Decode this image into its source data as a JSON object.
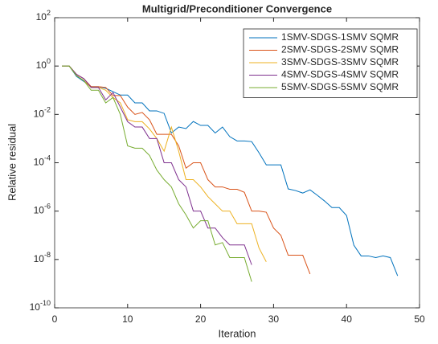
{
  "chart_data": {
    "type": "line",
    "title": "Multigrid/Preconditioner Convergence",
    "xlabel": "Iteration",
    "ylabel": "Relative residual",
    "xlim": [
      0,
      50
    ],
    "xticks": [
      0,
      10,
      20,
      30,
      40,
      50
    ],
    "ylim": [
      1e-10,
      100
    ],
    "yscale": "log",
    "yticks": [
      {
        "value": 1e-10,
        "label": "10^{-10}"
      },
      {
        "value": 1e-08,
        "label": "10^{-8}"
      },
      {
        "value": 1e-06,
        "label": "10^{-6}"
      },
      {
        "value": 0.0001,
        "label": "10^{-4}"
      },
      {
        "value": 0.01,
        "label": "10^{-2}"
      },
      {
        "value": 1,
        "label": "10^{0}"
      },
      {
        "value": 100,
        "label": "10^{2}"
      }
    ],
    "legend": "northeast",
    "series": [
      {
        "name": "1SMV-SDGS-1SMV SQMR",
        "color": "#0072bd",
        "x": [
          1,
          2,
          3,
          4,
          5,
          6,
          7,
          8,
          9,
          10,
          11,
          12,
          13,
          14,
          15,
          16,
          17,
          18,
          19,
          20,
          21,
          22,
          23,
          24,
          25,
          26,
          27,
          28,
          29,
          30,
          31,
          32,
          33,
          34,
          35,
          36,
          37,
          38,
          39,
          40,
          41,
          42,
          43,
          44,
          45,
          46,
          47
        ],
        "values": [
          1,
          1,
          0.37,
          0.23,
          0.14,
          0.14,
          0.12,
          0.087,
          0.063,
          0.063,
          0.03,
          0.03,
          0.014,
          0.014,
          0.011,
          0.0017,
          0.003,
          0.0026,
          0.0051,
          0.0035,
          0.0035,
          0.0017,
          0.003,
          0.0012,
          0.0008,
          0.0008,
          0.00075,
          0.00026,
          8.2e-05,
          8.2e-05,
          8.2e-05,
          8.3e-06,
          7.1e-06,
          5.6e-06,
          7.6e-06,
          4.5e-06,
          2.6e-06,
          1.4e-06,
          1.4e-06,
          6.6e-07,
          3.9e-08,
          1.4e-08,
          1.4e-08,
          1.2e-08,
          1.4e-08,
          1.2e-08,
          2.1e-09
        ]
      },
      {
        "name": "2SMV-SDGS-2SMV SQMR",
        "color": "#d95319",
        "x": [
          1,
          2,
          3,
          4,
          5,
          6,
          7,
          8,
          9,
          10,
          11,
          12,
          13,
          14,
          15,
          16,
          17,
          18,
          19,
          20,
          21,
          22,
          23,
          24,
          25,
          26,
          27,
          28,
          29,
          30,
          31,
          32,
          33,
          34,
          35
        ],
        "values": [
          1,
          1,
          0.45,
          0.3,
          0.14,
          0.14,
          0.13,
          0.06,
          0.06,
          0.02,
          0.01,
          0.012,
          0.006,
          0.0015,
          0.0015,
          0.0015,
          0.0005,
          6e-05,
          0.0001,
          0.0001,
          2e-05,
          1e-05,
          1e-05,
          8e-06,
          8e-06,
          6e-06,
          1e-06,
          1e-06,
          9e-07,
          2e-07,
          1e-07,
          1.5e-08,
          1.5e-08,
          1.5e-08,
          2.5e-09
        ]
      },
      {
        "name": "3SMV-SDGS-3SMV SQMR",
        "color": "#edb120",
        "x": [
          1,
          2,
          3,
          4,
          5,
          6,
          7,
          8,
          9,
          10,
          11,
          12,
          13,
          14,
          15,
          16,
          17,
          18,
          19,
          20,
          21,
          22,
          23,
          24,
          25,
          26,
          27,
          28,
          29
        ],
        "values": [
          1,
          1,
          0.4,
          0.25,
          0.13,
          0.13,
          0.1,
          0.05,
          0.03,
          0.006,
          0.005,
          0.005,
          0.0025,
          0.001,
          0.0003,
          0.003,
          0.0003,
          2e-05,
          2e-05,
          1e-05,
          4e-06,
          2e-06,
          1e-06,
          1e-06,
          3e-07,
          3e-07,
          3e-07,
          3e-08,
          8e-09
        ]
      },
      {
        "name": "4SMV-SDGS-4SMV SQMR",
        "color": "#7e2f8e",
        "x": [
          1,
          2,
          3,
          4,
          5,
          6,
          7,
          8,
          9,
          10,
          11,
          12,
          13,
          14,
          15,
          16,
          17,
          18,
          19,
          20,
          21,
          22,
          23,
          24,
          25,
          26,
          27
        ],
        "values": [
          1,
          1,
          0.45,
          0.3,
          0.13,
          0.13,
          0.04,
          0.08,
          0.02,
          0.005,
          0.003,
          0.003,
          0.001,
          0.001,
          0.0001,
          0.0001,
          2e-05,
          1e-05,
          1e-06,
          1e-06,
          2e-07,
          2e-07,
          8e-08,
          4e-08,
          4e-08,
          4e-08,
          6e-09
        ]
      },
      {
        "name": "5SMV-SDGS-5SMV SQMR",
        "color": "#77ac30",
        "x": [
          1,
          2,
          3,
          4,
          5,
          6,
          7,
          8,
          9,
          10,
          11,
          12,
          13,
          14,
          15,
          16,
          17,
          18,
          19,
          20,
          21,
          22,
          23,
          24,
          25,
          26,
          27
        ],
        "values": [
          1,
          1,
          0.4,
          0.25,
          0.1,
          0.1,
          0.03,
          0.05,
          0.01,
          0.0005,
          0.0004,
          0.0004,
          0.0002,
          5e-05,
          2e-05,
          1e-05,
          2e-06,
          7e-07,
          2e-07,
          4e-07,
          4e-07,
          4e-08,
          5e-08,
          1.2e-08,
          1.2e-08,
          1.2e-08,
          1.2e-09
        ]
      }
    ]
  }
}
